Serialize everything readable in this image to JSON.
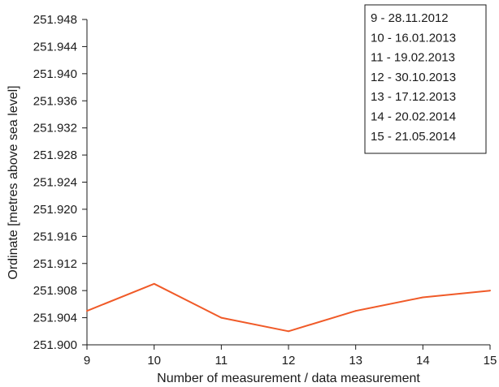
{
  "chart_data": {
    "type": "line",
    "title": "",
    "xlabel": "Number of measurement / data measurement",
    "ylabel": "Ordinate [metres above sea level]",
    "xlim": [
      9,
      15
    ],
    "ylim": [
      251.9,
      251.948
    ],
    "x_ticks": [
      "9",
      "10",
      "11",
      "12",
      "13",
      "14",
      "15"
    ],
    "y_ticks": [
      "251.900",
      "251.904",
      "251.908",
      "251.912",
      "251.916",
      "251.920",
      "251.924",
      "251.928",
      "251.932",
      "251.936",
      "251.940",
      "251.944",
      "251.948"
    ],
    "grid": false,
    "series": [
      {
        "color": "#f05a28",
        "x": [
          9,
          10,
          11,
          12,
          13,
          14,
          15
        ],
        "values": [
          251.905,
          251.909,
          251.904,
          251.902,
          251.905,
          251.907,
          251.908
        ]
      }
    ],
    "legend": {
      "placement": "top-right",
      "entries": [
        "9 - 28.11.2012",
        "10 - 16.01.2013",
        "11 - 19.02.2013",
        "12 - 30.10.2013",
        "13 - 17.12.2013",
        "14 - 20.02.2014",
        "15 - 21.05.2014"
      ]
    }
  }
}
